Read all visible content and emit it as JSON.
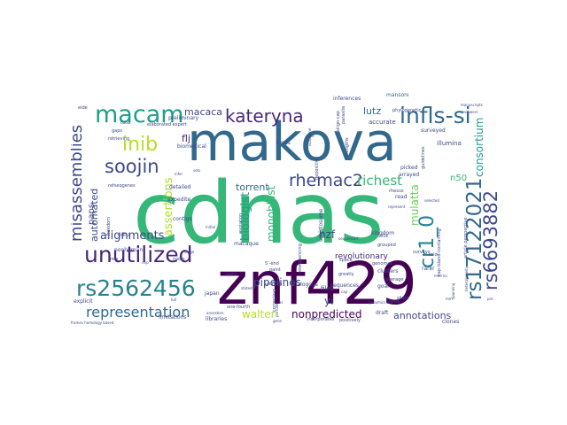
{
  "palette": {
    "dark_purple": "#440154",
    "indigo": "#482878",
    "slate_blue": "#3e4989",
    "steel_blue": "#31688e",
    "teal_blue": "#26828e",
    "teal": "#1f9e89",
    "green": "#35b779",
    "lime": "#6ece58",
    "yellow_green": "#b5de2b",
    "yellow": "#fde725"
  },
  "words": [
    {
      "text": "cdnas",
      "color": "#35b779"
    },
    {
      "text": "makova",
      "color": "#31688e"
    },
    {
      "text": "znf429",
      "color": "#440154"
    },
    {
      "text": "macam",
      "color": "#1f9e89"
    },
    {
      "text": "kateryna",
      "color": "#482878"
    },
    {
      "text": "infls-si",
      "color": "#31688e"
    },
    {
      "text": "soojin",
      "color": "#3e4989"
    },
    {
      "text": "inib",
      "color": "#b5de2b"
    },
    {
      "text": "unutilized",
      "color": "#482878"
    },
    {
      "text": "rs2562456",
      "color": "#26828e"
    },
    {
      "text": "representation",
      "color": "#31688e"
    },
    {
      "text": "misassemblies",
      "color": "#3e4989"
    },
    {
      "text": "rs17122021",
      "color": "#31688e"
    },
    {
      "text": "rs6693882",
      "color": "#3e4989"
    },
    {
      "text": "cr1_0",
      "color": "#26828e"
    },
    {
      "text": "rhemac2",
      "color": "#3e4989"
    },
    {
      "text": "richest",
      "color": "#35b779"
    },
    {
      "text": "consortium",
      "color": "#1f9e89"
    },
    {
      "text": "assertions",
      "color": "#b5de2b"
    },
    {
      "text": "alignments",
      "color": "#3e4989"
    },
    {
      "text": "biologist",
      "color": "#1f9e89"
    },
    {
      "text": "monoblast",
      "color": "#35b779"
    },
    {
      "text": "torrent",
      "color": "#31688e"
    },
    {
      "text": "nonpredicted",
      "color": "#440154"
    },
    {
      "text": "annotations",
      "color": "#3e4989"
    },
    {
      "text": "walter",
      "color": "#b5de2b"
    },
    {
      "text": "pipelines",
      "color": "#3e4989"
    },
    {
      "text": "mulatta",
      "color": "#6ece58"
    },
    {
      "text": "lutz",
      "color": "#31688e"
    },
    {
      "text": "hzf",
      "color": "#3e4989"
    },
    {
      "text": "macaca",
      "color": "#3e4989"
    },
    {
      "text": "flj",
      "color": "#482878"
    },
    {
      "text": "automated",
      "color": "#3e4989"
    },
    {
      "text": "paps",
      "color": "#3e4989"
    },
    {
      "text": "yi",
      "color": "#3e4989"
    },
    {
      "text": "n50",
      "color": "#35b779"
    },
    {
      "text": "revolutionary",
      "color": "#482878"
    },
    {
      "text": "accurate",
      "color": "#3e4989"
    },
    {
      "text": "illumina",
      "color": "#3e4989"
    },
    {
      "text": "inferences",
      "color": "#3e4989"
    },
    {
      "text": "mansoni",
      "color": "#31688e"
    },
    {
      "text": "kinds",
      "color": "#3e4989"
    },
    {
      "text": "biomedical",
      "color": "#3e4989"
    },
    {
      "text": "preliminary",
      "color": "#3e4989"
    },
    {
      "text": "elaborated expert",
      "color": "#3e4989"
    },
    {
      "text": "detailed",
      "color": "#3e4989"
    },
    {
      "text": "macaque",
      "color": "#3e4989"
    },
    {
      "text": "contigs",
      "color": "#3e4989"
    },
    {
      "text": "cdna",
      "color": "#3e4989"
    },
    {
      "text": "nonhuman",
      "color": "#3e4989"
    },
    {
      "text": "files",
      "color": "#3e4989"
    },
    {
      "text": "sequences",
      "color": "#3e4989"
    },
    {
      "text": "clusters",
      "color": "#3e4989"
    },
    {
      "text": "goal",
      "color": "#3e4989"
    },
    {
      "text": "rarer",
      "color": "#3e4989"
    },
    {
      "text": "draft",
      "color": "#3e4989"
    },
    {
      "text": "clones",
      "color": "#3e4989"
    },
    {
      "text": "libraries",
      "color": "#3e4989"
    },
    {
      "text": "picked",
      "color": "#3e4989"
    },
    {
      "text": "arrayed",
      "color": "#3e4989"
    },
    {
      "text": "read",
      "color": "#3e4989"
    },
    {
      "text": "kingdom",
      "color": "#3e4989"
    },
    {
      "text": "greatly",
      "color": "#3e4989"
    },
    {
      "text": "trees",
      "color": "#3e4989"
    },
    {
      "text": "schistosome",
      "color": "#3e4989"
    },
    {
      "text": "surveyed",
      "color": "#3e4989"
    },
    {
      "text": "phylogenetic",
      "color": "#3e4989"
    },
    {
      "text": "strengths",
      "color": "#3e4989"
    },
    {
      "text": "parasite",
      "color": "#3e4989"
    },
    {
      "text": "expedite",
      "color": "#3e4989"
    },
    {
      "text": "analogous",
      "color": "#3e4989"
    },
    {
      "text": "limitations",
      "color": "#3e4989"
    },
    {
      "text": "correcting",
      "color": "#3e4989"
    },
    {
      "text": "explicit",
      "color": "#3e4989"
    },
    {
      "text": "japan",
      "color": "#3e4989"
    },
    {
      "text": "rhesus",
      "color": "#3e4989"
    },
    {
      "text": "refseqgenes",
      "color": "#3e4989"
    },
    {
      "text": "gaps",
      "color": "#3e4989"
    },
    {
      "text": "eide",
      "color": "#3e4989"
    },
    {
      "text": "freedom",
      "color": "#3e4989"
    },
    {
      "text": "evolution",
      "color": "#3e4989"
    },
    {
      "text": "paint",
      "color": "#3e4989"
    },
    {
      "text": "uniform",
      "color": "#3e4989"
    },
    {
      "text": "genomes",
      "color": "#3e4989"
    },
    {
      "text": "surveys",
      "color": "#3e4989"
    },
    {
      "text": "cap-island-containing",
      "color": "#3e4989"
    },
    {
      "text": "raid",
      "color": "#3e4989"
    },
    {
      "text": "500k",
      "color": "#3e4989"
    },
    {
      "text": "slight",
      "color": "#3e4989"
    },
    {
      "text": "average",
      "color": "#3e4989"
    },
    {
      "text": "article perspective",
      "color": "#3e4989"
    },
    {
      "text": "positively",
      "color": "#3e4989"
    },
    {
      "text": "incorporates",
      "color": "#3e4989"
    },
    {
      "text": "one-fourth",
      "color": "#3e4989"
    },
    {
      "text": "guidelines",
      "color": "#3e4989"
    },
    {
      "text": "depositing",
      "color": "#3e4989"
    },
    {
      "text": "refs",
      "color": "#3e4989"
    },
    {
      "text": "resequencing",
      "color": "#3e4989"
    },
    {
      "text": "frames homology based",
      "color": "#3e4989"
    },
    {
      "text": "nwbp",
      "color": "#3e4989"
    },
    {
      "text": "tooa",
      "color": "#3e4989"
    },
    {
      "text": "retrieving",
      "color": "#3e4989"
    },
    {
      "text": "ancestors",
      "color": "#3e4989"
    },
    {
      "text": "infer",
      "color": "#3e4989"
    },
    {
      "text": "cost",
      "color": "#3e4989"
    },
    {
      "text": "5'-end",
      "color": "#3e4989"
    },
    {
      "text": "isoflavone",
      "color": "#3e4989"
    },
    {
      "text": "grouped",
      "color": "#3e4989"
    },
    {
      "text": "represent",
      "color": "#3e4989"
    },
    {
      "text": "manuscripts",
      "color": "#3e4989"
    },
    {
      "text": "reviewers",
      "color": "#3e4989"
    },
    {
      "text": "oligo-cap",
      "color": "#3e4989"
    },
    {
      "text": "spanning",
      "color": "#3e4989"
    },
    {
      "text": "genomics",
      "color": "#3e4989"
    },
    {
      "text": "heterogeneity",
      "color": "#3e4989"
    },
    {
      "text": "metrics",
      "color": "#3e4989"
    },
    {
      "text": "pre",
      "color": "#3e4989"
    },
    {
      "text": "space",
      "color": "#3e4989"
    },
    {
      "text": "initial",
      "color": "#3e4989"
    },
    {
      "text": "sequenced",
      "color": "#3e4989"
    },
    {
      "text": "selected",
      "color": "#3e4989"
    },
    {
      "text": "useful",
      "color": "#3e4989"
    },
    {
      "text": "stated",
      "color": "#3e4989"
    },
    {
      "text": "nhp",
      "color": "#3e4989"
    },
    {
      "text": "mm",
      "color": "#3e4989"
    },
    {
      "text": "ac",
      "color": "#3e4989"
    },
    {
      "text": "gene",
      "color": "#3e4989"
    },
    {
      "text": "primate",
      "color": "#3e4989"
    },
    {
      "text": "cap",
      "color": "#3e4989"
    },
    {
      "text": "stage",
      "color": "#3e4989"
    },
    {
      "text": "sets",
      "color": "#3e4989"
    },
    {
      "text": "full",
      "color": "#3e4989"
    }
  ]
}
